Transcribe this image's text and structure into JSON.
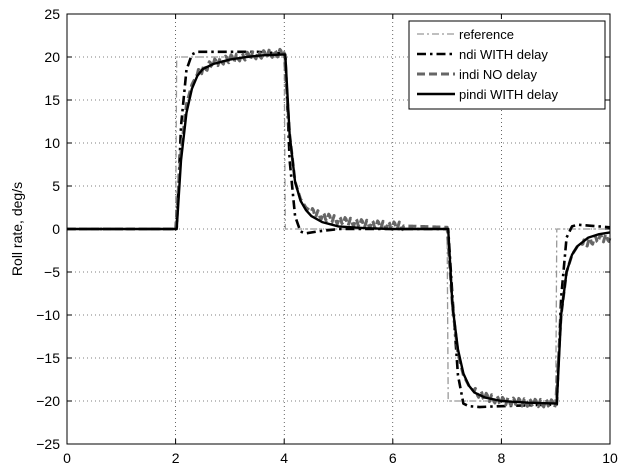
{
  "chart_data": {
    "type": "line",
    "title": "",
    "xlabel": "",
    "ylabel": "Roll rate, deg/s",
    "xlim": [
      0,
      10
    ],
    "ylim": [
      -25,
      25
    ],
    "xticks": [
      0,
      2,
      4,
      6,
      8,
      10
    ],
    "yticks": [
      -25,
      -20,
      -15,
      -10,
      -5,
      0,
      5,
      10,
      15,
      20,
      25
    ],
    "xtick_labels": [
      "0",
      "2",
      "4",
      "6",
      "8",
      "10"
    ],
    "ytick_labels": [
      "−25",
      "−20",
      "−15",
      "−10",
      "−5",
      "0",
      "5",
      "10",
      "15",
      "20",
      "25"
    ],
    "grid": true,
    "legend_position": "top-right",
    "series": [
      {
        "name": "reference",
        "color": "#999999",
        "style": "dash-dot",
        "x": [
          0,
          2.0,
          2.02,
          4.0,
          4.02,
          7.0,
          7.02,
          9.0,
          9.02,
          10
        ],
        "y": [
          0,
          0,
          20,
          20,
          0,
          0,
          -20,
          -20,
          0,
          0
        ]
      },
      {
        "name": "ndi WITH delay",
        "color": "#000000",
        "style": "dash-dot-thick",
        "x": [
          0,
          2.02,
          2.1,
          2.2,
          2.3,
          2.4,
          3.5,
          4.02,
          4.1,
          4.2,
          4.3,
          4.4,
          4.6,
          5.0,
          7.02,
          7.1,
          7.2,
          7.3,
          7.4,
          7.6,
          8.0,
          9.02,
          9.1,
          9.2,
          9.3,
          9.4,
          9.6,
          10
        ],
        "y": [
          0,
          0,
          12,
          18.5,
          20.3,
          20.6,
          20.6,
          20.4,
          8,
          1.5,
          -0.3,
          -0.5,
          -0.3,
          0,
          0,
          -8,
          -17,
          -20.3,
          -20.6,
          -20.7,
          -20.6,
          -20.4,
          -8,
          -1,
          0.3,
          0.5,
          0.4,
          0.2
        ]
      },
      {
        "name": "indi NO delay",
        "color": "#666666",
        "style": "dashed",
        "x": [
          0,
          2.0,
          2.1,
          2.2,
          2.3,
          2.4,
          2.5,
          2.7,
          3.0,
          3.3,
          3.6,
          4.0,
          4.1,
          4.2,
          4.3,
          4.4,
          4.5,
          4.7,
          5.0,
          5.5,
          6.0,
          7.0,
          7.1,
          7.2,
          7.3,
          7.4,
          7.5,
          7.7,
          8.0,
          8.5,
          9.0,
          9.1,
          9.2,
          9.3,
          9.4,
          9.6,
          9.8,
          10
        ],
        "y": [
          0,
          0,
          9,
          14.5,
          16.8,
          18,
          18.6,
          19.3,
          19.8,
          20.1,
          20.3,
          20.5,
          11,
          5.5,
          3.5,
          2.5,
          2.0,
          1.5,
          1.0,
          0.6,
          0.4,
          0.2,
          -9,
          -14.5,
          -17,
          -18.2,
          -18.9,
          -19.5,
          -20,
          -20.2,
          -20.3,
          -10,
          -5,
          -3,
          -2,
          -1.5,
          -1.1,
          -1.0
        ]
      },
      {
        "name": "pindi WITH delay",
        "color": "#000000",
        "style": "solid",
        "x": [
          0,
          2.02,
          2.1,
          2.2,
          2.3,
          2.4,
          2.5,
          2.7,
          3.0,
          3.3,
          3.6,
          4.02,
          4.1,
          4.2,
          4.3,
          4.4,
          4.5,
          4.7,
          5.0,
          5.5,
          6.0,
          7.02,
          7.1,
          7.2,
          7.3,
          7.4,
          7.5,
          7.7,
          8.0,
          8.5,
          9.02,
          9.1,
          9.2,
          9.3,
          9.4,
          9.6,
          9.8,
          10
        ],
        "y": [
          0,
          0,
          8,
          13.5,
          16.3,
          17.8,
          18.6,
          19.2,
          19.7,
          20,
          20.2,
          20.3,
          11,
          5.5,
          3.3,
          2.2,
          1.5,
          0.8,
          0.3,
          0.1,
          0,
          0,
          -9,
          -14,
          -16.8,
          -18.2,
          -19,
          -19.6,
          -20,
          -20.2,
          -20.3,
          -10,
          -5,
          -3,
          -2,
          -1,
          -0.6,
          -0.4
        ]
      }
    ]
  }
}
